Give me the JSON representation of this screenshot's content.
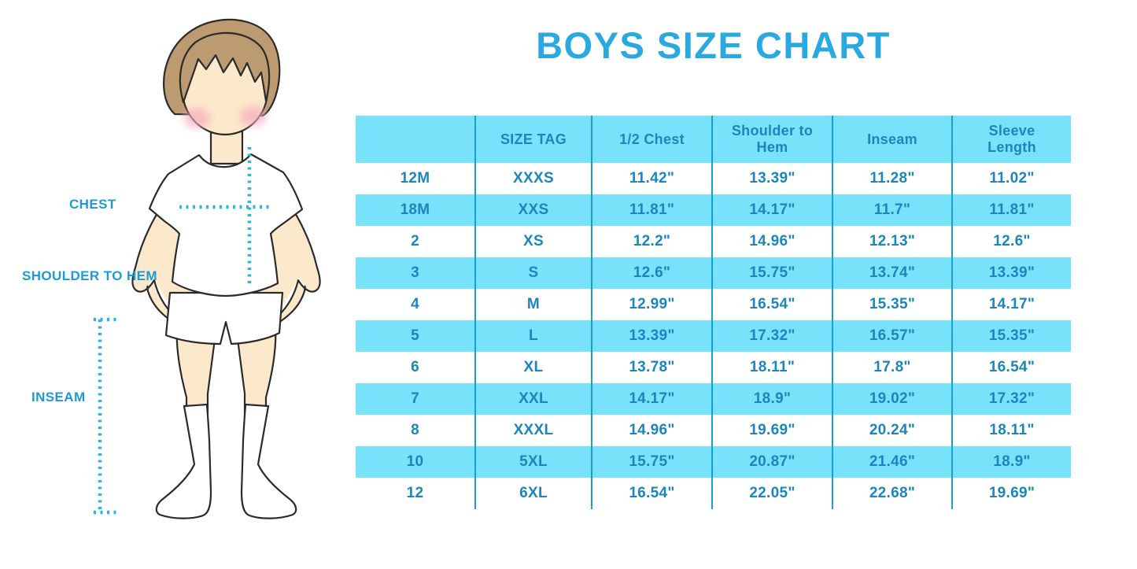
{
  "title": "BOYS SIZE CHART",
  "figure": {
    "description": "boy-in-tshirt-shorts-and-socks-measurement-diagram",
    "labels": {
      "chest": "CHEST",
      "shoulder_to_hem": "SHOULDER TO HEM",
      "inseam": "INSEAM"
    }
  },
  "colors": {
    "title_blue": "#29A9E0",
    "label_blue": "#1D9AD6",
    "table_text": "#1B86BE",
    "band_cyan": "#78E2FB",
    "divider_blue": "#1B9CD3",
    "dotted_line": "#29B4E8",
    "skin": "#FCE8CB",
    "hair": "#BD9B70",
    "outline": "#2B2B2B",
    "blush_pink": "#F5A9BE"
  },
  "table": {
    "headers": [
      "",
      "SIZE TAG",
      "1/2 Chest",
      "Shoulder to Hem",
      "Inseam",
      "Sleeve Length"
    ],
    "rows": [
      {
        "shaded": false,
        "cells": [
          "12M",
          "XXXS",
          "11.42\"",
          "13.39\"",
          "11.28\"",
          "11.02\""
        ]
      },
      {
        "shaded": true,
        "cells": [
          "18M",
          "XXS",
          "11.81\"",
          "14.17\"",
          "11.7\"",
          "11.81\""
        ]
      },
      {
        "shaded": false,
        "cells": [
          "2",
          "XS",
          "12.2\"",
          "14.96\"",
          "12.13\"",
          "12.6\""
        ]
      },
      {
        "shaded": true,
        "cells": [
          "3",
          "S",
          "12.6\"",
          "15.75\"",
          "13.74\"",
          "13.39\""
        ]
      },
      {
        "shaded": false,
        "cells": [
          "4",
          "M",
          "12.99\"",
          "16.54\"",
          "15.35\"",
          "14.17\""
        ]
      },
      {
        "shaded": true,
        "cells": [
          "5",
          "L",
          "13.39\"",
          "17.32\"",
          "16.57\"",
          "15.35\""
        ]
      },
      {
        "shaded": false,
        "cells": [
          "6",
          "XL",
          "13.78\"",
          "18.11\"",
          "17.8\"",
          "16.54\""
        ]
      },
      {
        "shaded": true,
        "cells": [
          "7",
          "XXL",
          "14.17\"",
          "18.9\"",
          "19.02\"",
          "17.32\""
        ]
      },
      {
        "shaded": false,
        "cells": [
          "8",
          "XXXL",
          "14.96\"",
          "19.69\"",
          "20.24\"",
          "18.11\""
        ]
      },
      {
        "shaded": true,
        "cells": [
          "10",
          "5XL",
          "15.75\"",
          "20.87\"",
          "21.46\"",
          "18.9\""
        ]
      },
      {
        "shaded": false,
        "cells": [
          "12",
          "6XL",
          "16.54\"",
          "22.05\"",
          "22.68\"",
          "19.69\""
        ]
      }
    ]
  }
}
